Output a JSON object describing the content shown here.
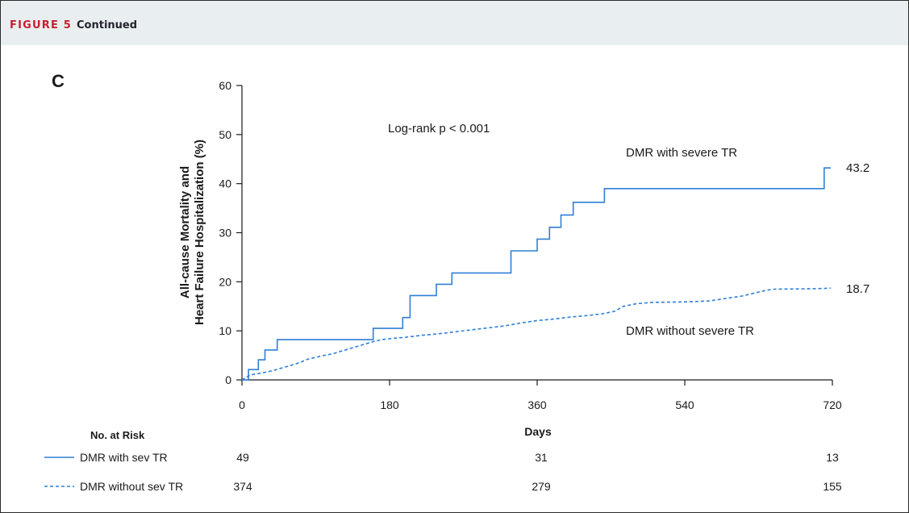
{
  "figure": {
    "label": "FIGURE 5",
    "continued": "Continued",
    "panel": "C"
  },
  "colors": {
    "accent_red": "#c8202f",
    "header_bg": "#e9eff0",
    "series_blue": "#2f7fd6"
  },
  "chart_data": {
    "type": "line",
    "xlabel": "Days",
    "ylabel_line1": "All-cause Mortality and",
    "ylabel_line2": "Heart Failure Hospitalization (%)",
    "xlim": [
      0,
      720
    ],
    "ylim": [
      0,
      60
    ],
    "x_ticks": [
      0,
      180,
      360,
      540,
      720
    ],
    "y_ticks": [
      0,
      10,
      20,
      30,
      40,
      50,
      60
    ],
    "grid": false,
    "annotation": "Log-rank p < 0.001",
    "series": [
      {
        "name": "DMR with severe TR",
        "risk_name": "DMR with sev TR",
        "line_style": "solid",
        "end_value": "43.2",
        "points": [
          [
            0,
            0
          ],
          [
            8,
            0
          ],
          [
            8,
            2.1
          ],
          [
            20,
            2.1
          ],
          [
            20,
            4.1
          ],
          [
            28,
            4.1
          ],
          [
            28,
            6.1
          ],
          [
            43,
            6.1
          ],
          [
            43,
            8.2
          ],
          [
            160,
            8.2
          ],
          [
            160,
            10.5
          ],
          [
            196,
            10.5
          ],
          [
            196,
            12.7
          ],
          [
            205,
            12.7
          ],
          [
            205,
            17.2
          ],
          [
            237,
            17.2
          ],
          [
            237,
            19.5
          ],
          [
            256,
            19.5
          ],
          [
            256,
            21.8
          ],
          [
            328,
            21.8
          ],
          [
            328,
            26.3
          ],
          [
            360,
            26.3
          ],
          [
            360,
            28.7
          ],
          [
            375,
            28.7
          ],
          [
            375,
            31.1
          ],
          [
            389,
            31.1
          ],
          [
            389,
            33.6
          ],
          [
            404,
            33.6
          ],
          [
            404,
            36.2
          ],
          [
            442,
            36.2
          ],
          [
            442,
            39.0
          ],
          [
            710,
            39.0
          ],
          [
            710,
            43.2
          ],
          [
            718,
            43.2
          ]
        ]
      },
      {
        "name": "DMR without severe TR",
        "risk_name": "DMR without sev TR",
        "line_style": "dashed",
        "end_value": "18.7",
        "points": [
          [
            0,
            0
          ],
          [
            5,
            0.5
          ],
          [
            10,
            1.0
          ],
          [
            20,
            1.3
          ],
          [
            30,
            1.6
          ],
          [
            40,
            2.0
          ],
          [
            50,
            2.5
          ],
          [
            60,
            3.0
          ],
          [
            70,
            3.5
          ],
          [
            80,
            4.2
          ],
          [
            90,
            4.6
          ],
          [
            100,
            5.0
          ],
          [
            110,
            5.3
          ],
          [
            120,
            5.8
          ],
          [
            130,
            6.3
          ],
          [
            140,
            6.8
          ],
          [
            150,
            7.3
          ],
          [
            160,
            7.8
          ],
          [
            170,
            8.2
          ],
          [
            180,
            8.4
          ],
          [
            200,
            8.7
          ],
          [
            220,
            9.1
          ],
          [
            240,
            9.4
          ],
          [
            260,
            9.8
          ],
          [
            280,
            10.2
          ],
          [
            300,
            10.6
          ],
          [
            320,
            11.0
          ],
          [
            340,
            11.6
          ],
          [
            360,
            12.1
          ],
          [
            380,
            12.4
          ],
          [
            400,
            12.8
          ],
          [
            420,
            13.1
          ],
          [
            440,
            13.5
          ],
          [
            455,
            14.0
          ],
          [
            465,
            15.0
          ],
          [
            480,
            15.5
          ],
          [
            500,
            15.8
          ],
          [
            540,
            15.9
          ],
          [
            570,
            16.1
          ],
          [
            590,
            16.6
          ],
          [
            610,
            17.1
          ],
          [
            630,
            17.9
          ],
          [
            640,
            18.3
          ],
          [
            650,
            18.5
          ],
          [
            700,
            18.6
          ],
          [
            718,
            18.7
          ]
        ]
      }
    ],
    "risk_table": {
      "title": "No. at Risk",
      "times": [
        0,
        360,
        720
      ],
      "rows": [
        {
          "values": [
            "49",
            "31",
            "13"
          ]
        },
        {
          "values": [
            "374",
            "279",
            "155"
          ]
        }
      ]
    }
  }
}
